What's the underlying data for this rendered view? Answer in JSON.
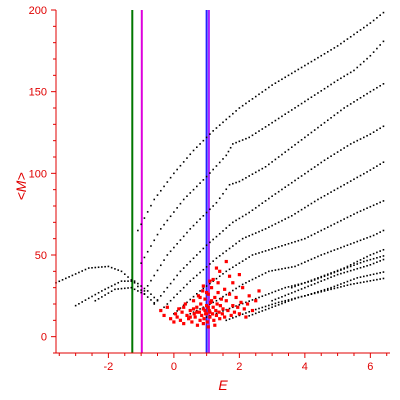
{
  "chart_data": {
    "type": "scatter",
    "title": "",
    "xlabel": "E",
    "ylabel": "<M>",
    "xlim": [
      -3.6,
      6.6
    ],
    "ylim": [
      -10,
      200
    ],
    "x_ticks": [
      -2,
      0,
      2,
      4,
      6
    ],
    "y_ticks": [
      0,
      50,
      100,
      150,
      200
    ],
    "x_tick_labels": [
      "-2",
      "0",
      "2",
      "4",
      "6"
    ],
    "y_tick_labels": [
      "0",
      "50",
      "100",
      "150",
      "200"
    ],
    "grid": false,
    "legend": "none",
    "colors": {
      "axis": "#e00000",
      "black_points": "#000000",
      "red_points": "#ff0000",
      "line_green": "#007700",
      "line_magenta": "#dd00dd",
      "line_blue": "#2222ff",
      "line_purple": "#aa22ff"
    },
    "vertical_lines": [
      {
        "x": -1.27,
        "color": "#007700"
      },
      {
        "x": -0.98,
        "color": "#dd00dd"
      },
      {
        "x": 1.0,
        "color": "#2222ff"
      },
      {
        "x": 1.07,
        "color": "#aa22ff"
      }
    ],
    "black_series_trends": [
      {
        "x": [
          -3.6,
          -2.6,
          -2.0,
          -1.6,
          -1.2,
          -0.8
        ],
        "y": [
          33,
          42,
          43,
          40,
          33,
          24
        ]
      },
      {
        "x": [
          -3.0,
          -2.2,
          -1.6,
          -1.2,
          -0.8,
          -0.4
        ],
        "y": [
          19,
          28,
          34,
          34,
          28,
          20
        ]
      },
      {
        "x": [
          -2.4,
          -1.8,
          -1.3,
          -0.9,
          -0.5
        ],
        "y": [
          22,
          29,
          30,
          26,
          19
        ]
      },
      {
        "x": [
          -1.1,
          -0.6,
          0.0,
          0.6,
          1.2,
          2.0,
          3.0,
          4.0,
          5.0,
          6.0,
          6.5
        ],
        "y": [
          65,
          84,
          100,
          114,
          126,
          140,
          154,
          166,
          178,
          192,
          200
        ]
      },
      {
        "x": [
          -1.0,
          -0.4,
          0.3,
          1.0,
          1.6,
          1.8,
          2.3,
          3.0,
          4.0,
          5.0,
          5.5,
          6.0,
          6.5
        ],
        "y": [
          45,
          66,
          84,
          98,
          111,
          118,
          122,
          131,
          144,
          157,
          163,
          172,
          183
        ]
      },
      {
        "x": [
          -0.9,
          -0.2,
          0.5,
          1.3,
          1.7,
          2.0,
          2.8,
          3.6,
          4.4,
          5.2,
          6.0,
          6.5
        ],
        "y": [
          28,
          50,
          66,
          82,
          93,
          95,
          104,
          116,
          128,
          140,
          150,
          156
        ]
      },
      {
        "x": [
          -0.6,
          0.2,
          1.0,
          1.8,
          2.3,
          3.0,
          3.8,
          4.6,
          5.4,
          6.0,
          6.5
        ],
        "y": [
          20,
          40,
          56,
          70,
          76,
          86,
          97,
          108,
          118,
          124,
          130
        ]
      },
      {
        "x": [
          -0.3,
          0.5,
          1.3,
          2.1,
          2.8,
          3.6,
          4.4,
          5.2,
          6.0,
          6.5
        ],
        "y": [
          18,
          34,
          48,
          60,
          66,
          74,
          84,
          93,
          102,
          108
        ]
      },
      {
        "x": [
          0.0,
          0.8,
          1.6,
          2.4,
          3.2,
          4.0,
          4.8,
          5.6,
          6.5
        ],
        "y": [
          14,
          28,
          40,
          50,
          55,
          60,
          68,
          76,
          84
        ]
      },
      {
        "x": [
          0.5,
          1.3,
          2.1,
          2.9,
          3.7,
          4.5,
          5.3,
          6.1,
          6.5
        ],
        "y": [
          14,
          22,
          32,
          40,
          43,
          50,
          56,
          62,
          66
        ]
      },
      {
        "x": [
          1.0,
          1.8,
          2.6,
          3.4,
          4.2,
          5.0,
          5.8,
          6.5
        ],
        "y": [
          12,
          18,
          24,
          30,
          34,
          40,
          46,
          50
        ]
      },
      {
        "x": [
          1.6,
          2.4,
          3.2,
          4.0,
          4.8,
          5.6,
          6.5
        ],
        "y": [
          10,
          16,
          21,
          25,
          30,
          36,
          40
        ]
      },
      {
        "x": [
          2.2,
          3.0,
          3.8,
          4.6,
          5.4,
          6.5
        ],
        "y": [
          12,
          18,
          24,
          28,
          32,
          36
        ]
      },
      {
        "x": [
          3.0,
          4.0,
          5.0,
          6.0,
          6.5
        ],
        "y": [
          22,
          30,
          38,
          44,
          48
        ]
      },
      {
        "x": [
          3.6,
          4.4,
          5.2,
          6.0,
          6.5
        ],
        "y": [
          30,
          36,
          42,
          50,
          54
        ]
      }
    ],
    "red_points": [
      [
        -0.4,
        16
      ],
      [
        -0.3,
        13
      ],
      [
        -0.2,
        18
      ],
      [
        -0.1,
        11
      ],
      [
        0.0,
        9
      ],
      [
        0.05,
        14
      ],
      [
        0.1,
        12
      ],
      [
        0.15,
        17
      ],
      [
        0.2,
        10
      ],
      [
        0.25,
        15
      ],
      [
        0.3,
        8
      ],
      [
        0.35,
        20
      ],
      [
        0.4,
        13
      ],
      [
        0.45,
        11
      ],
      [
        0.5,
        16
      ],
      [
        0.55,
        9
      ],
      [
        0.6,
        22
      ],
      [
        0.62,
        14
      ],
      [
        0.65,
        12
      ],
      [
        0.7,
        18
      ],
      [
        0.72,
        7
      ],
      [
        0.75,
        25
      ],
      [
        0.78,
        15
      ],
      [
        0.8,
        10
      ],
      [
        0.82,
        20
      ],
      [
        0.85,
        13
      ],
      [
        0.88,
        28
      ],
      [
        0.9,
        17
      ],
      [
        0.92,
        11
      ],
      [
        0.95,
        23
      ],
      [
        0.97,
        14
      ],
      [
        1.0,
        19
      ],
      [
        1.02,
        9
      ],
      [
        1.05,
        26
      ],
      [
        1.08,
        16
      ],
      [
        1.1,
        12
      ],
      [
        1.12,
        21
      ],
      [
        1.15,
        30
      ],
      [
        1.18,
        14
      ],
      [
        1.2,
        18
      ],
      [
        1.22,
        10
      ],
      [
        1.25,
        24
      ],
      [
        1.28,
        16
      ],
      [
        1.3,
        13
      ],
      [
        1.32,
        20
      ],
      [
        1.35,
        27
      ],
      [
        1.38,
        15
      ],
      [
        1.4,
        11
      ],
      [
        1.42,
        19
      ],
      [
        1.45,
        23
      ],
      [
        1.48,
        14
      ],
      [
        1.5,
        17
      ],
      [
        1.55,
        12
      ],
      [
        1.6,
        22
      ],
      [
        1.65,
        16
      ],
      [
        1.7,
        26
      ],
      [
        1.75,
        13
      ],
      [
        1.8,
        19
      ],
      [
        1.85,
        15
      ],
      [
        1.9,
        24
      ],
      [
        1.95,
        18
      ],
      [
        2.0,
        14
      ],
      [
        2.05,
        21
      ],
      [
        2.1,
        30
      ],
      [
        2.15,
        17
      ],
      [
        2.2,
        12
      ],
      [
        2.25,
        20
      ],
      [
        2.3,
        25
      ],
      [
        2.4,
        16
      ],
      [
        2.5,
        22
      ],
      [
        2.6,
        28
      ],
      [
        1.2,
        35
      ],
      [
        1.4,
        40
      ],
      [
        1.6,
        46
      ],
      [
        1.8,
        33
      ],
      [
        2.0,
        38
      ],
      [
        0.9,
        31
      ],
      [
        1.1,
        34
      ],
      [
        1.3,
        42
      ],
      [
        1.7,
        37
      ],
      [
        0.3,
        18
      ],
      [
        0.5,
        12
      ],
      [
        0.7,
        15
      ],
      [
        0.9,
        8
      ],
      [
        1.05,
        6
      ],
      [
        1.25,
        7
      ],
      [
        0.6,
        17
      ],
      [
        0.8,
        24
      ],
      [
        1.0,
        27
      ],
      [
        1.15,
        22
      ],
      [
        1.35,
        33
      ],
      [
        1.55,
        29
      ],
      [
        1.0,
        14
      ],
      [
        1.05,
        18
      ],
      [
        1.1,
        15
      ],
      [
        0.95,
        16
      ]
    ]
  }
}
